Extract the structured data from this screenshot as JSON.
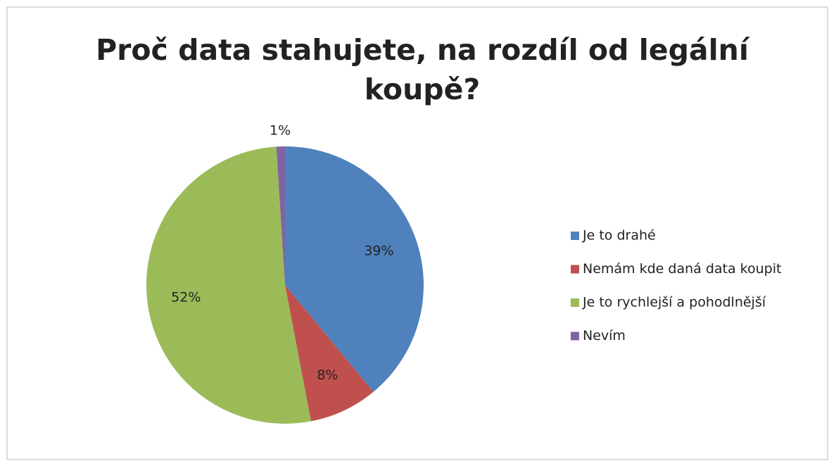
{
  "chart_data": {
    "type": "pie",
    "title": [
      "Proč data stahujete, na rozdíl od legální",
      "koupě?"
    ],
    "categories": [
      "Je to drahé",
      "Nemám kde daná data koupit",
      "Je to rychlejší a pohodlnější",
      "Nevím"
    ],
    "values": [
      39,
      8,
      52,
      1
    ],
    "value_labels": [
      "39%",
      "8%",
      "52%",
      "1%"
    ],
    "colors": [
      "#4f81bd",
      "#c0504d",
      "#9bbb59",
      "#8064a2"
    ],
    "legend": "right"
  }
}
